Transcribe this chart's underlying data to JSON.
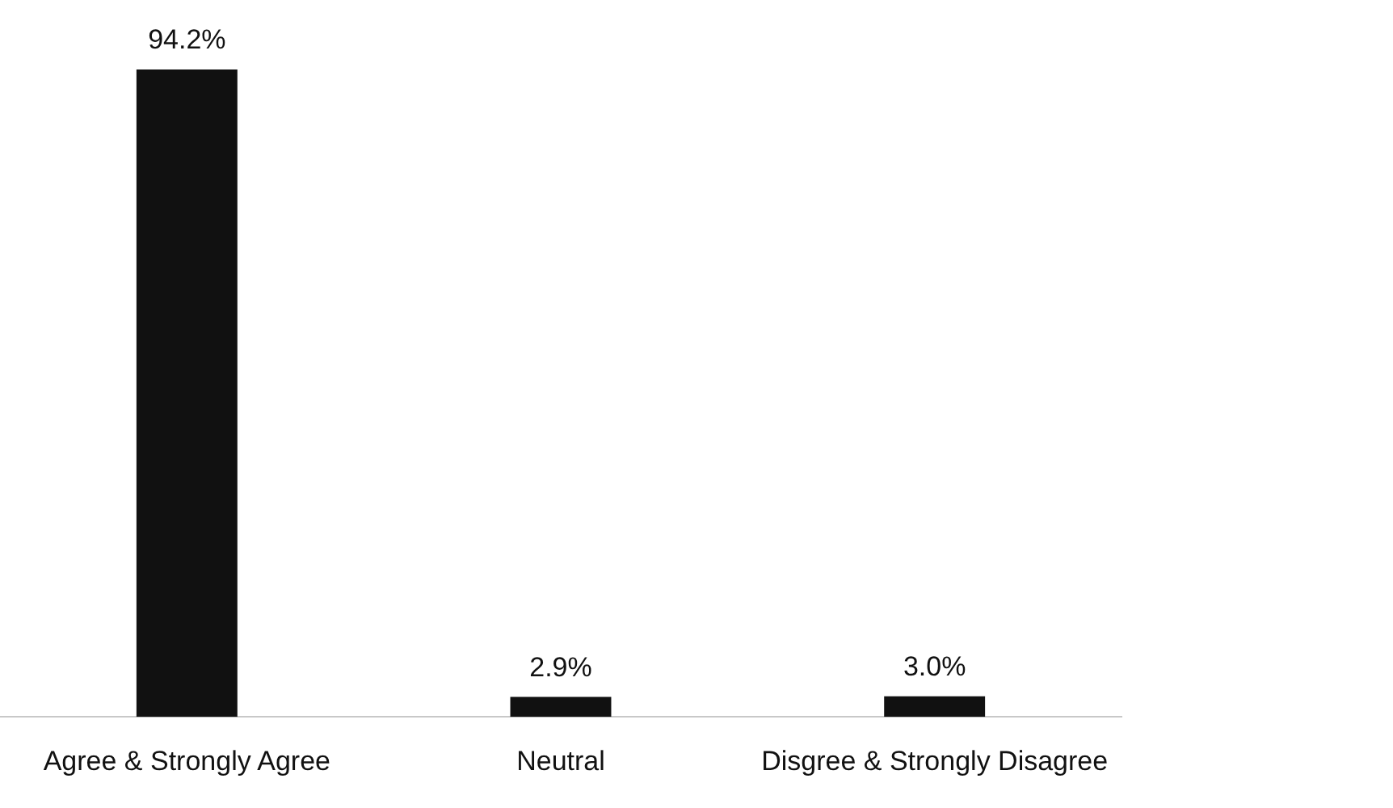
{
  "chart_data": {
    "type": "bar",
    "categories": [
      "Agree & Strongly Agree",
      "Neutral",
      "Disgree & Strongly Disagree"
    ],
    "values": [
      94.2,
      2.9,
      3.0
    ],
    "value_labels": [
      "94.2%",
      "2.9%",
      "3.0%"
    ],
    "color": "#111111",
    "grid": false,
    "legend": false
  }
}
